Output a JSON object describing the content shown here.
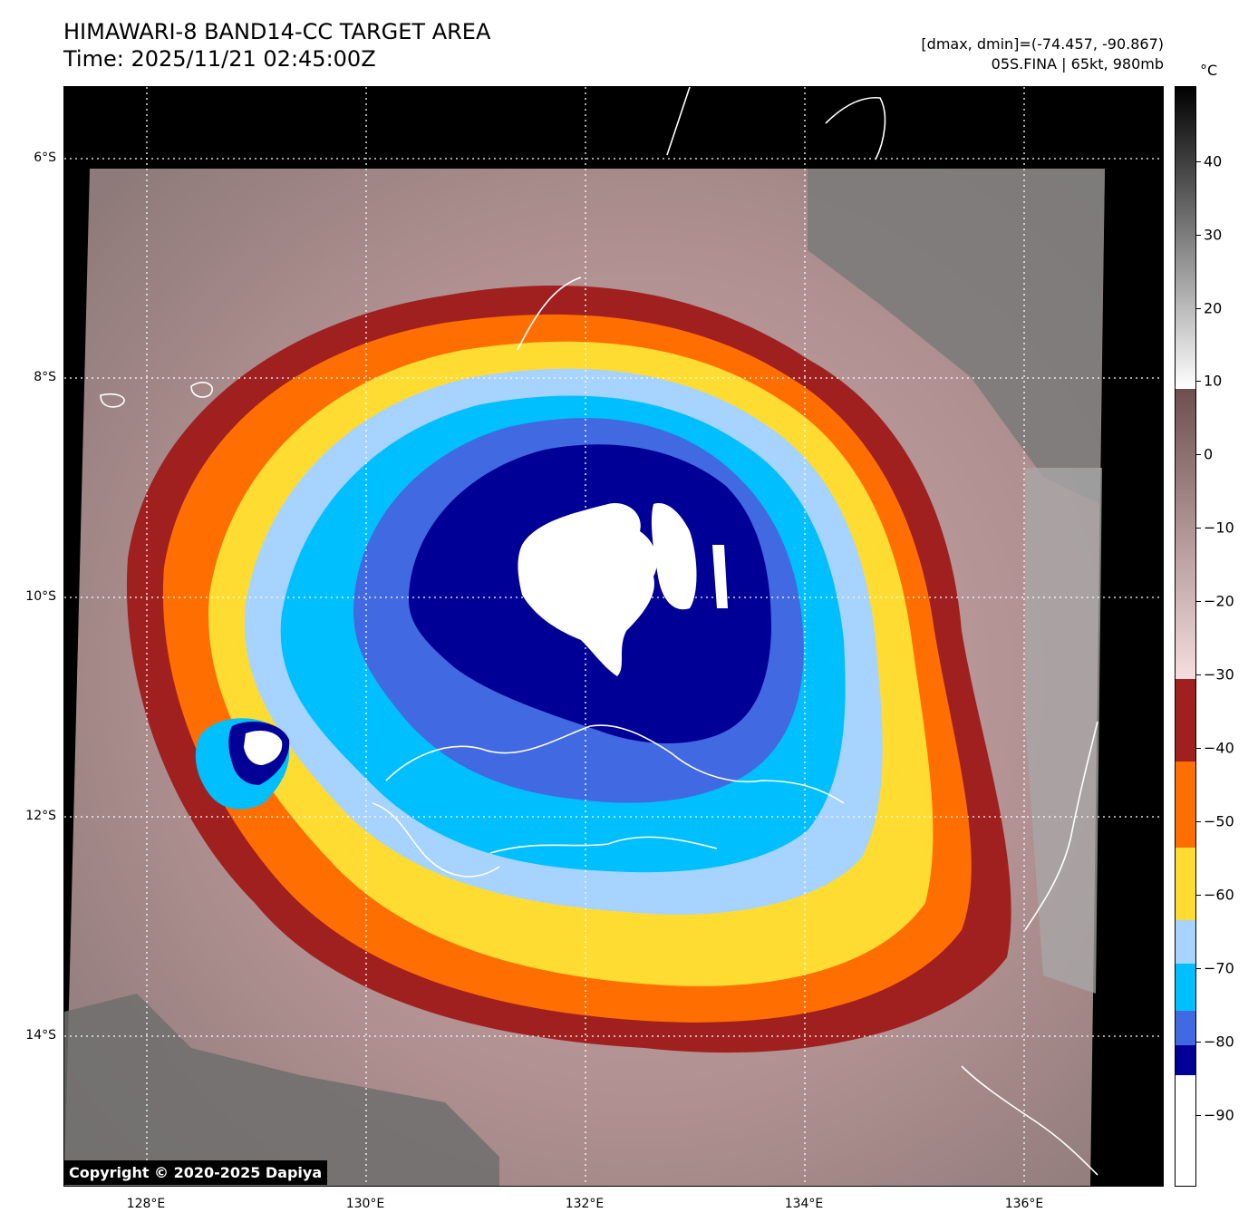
{
  "header": {
    "title_line1": "HIMAWARI-8 BAND14-CC TARGET AREA",
    "title_line2": "Time: 2025/11/21 02:45:00Z",
    "range_text": "[dmax, dmin]=(-74.457, -90.867)",
    "storm_text": "05S.FINA | 65kt, 980mb"
  },
  "axes": {
    "lat_labels": [
      "6°S",
      "8°S",
      "10°S",
      "12°S",
      "14°S"
    ],
    "lon_labels": [
      "128°E",
      "130°E",
      "132°E",
      "134°E",
      "136°E"
    ]
  },
  "colorbar": {
    "unit": "°C",
    "ticks": [
      "40",
      "30",
      "20",
      "10",
      "0",
      "−10",
      "−20",
      "−30",
      "−40",
      "−50",
      "−60",
      "−70",
      "−80",
      "−90"
    ]
  },
  "footer": {
    "copyright": "Copyright © 2020-2025 Dapiya"
  },
  "colors": {
    "dark_navy": "#000096",
    "royal_blue": "#4169e1",
    "deep_sky": "#00bfff",
    "light_blue": "#a6d3ff",
    "yellow": "#ffdc32",
    "orange": "#ff6e00",
    "dark_red": "#a02020",
    "pinkish_gray": "#c8a8a8"
  }
}
